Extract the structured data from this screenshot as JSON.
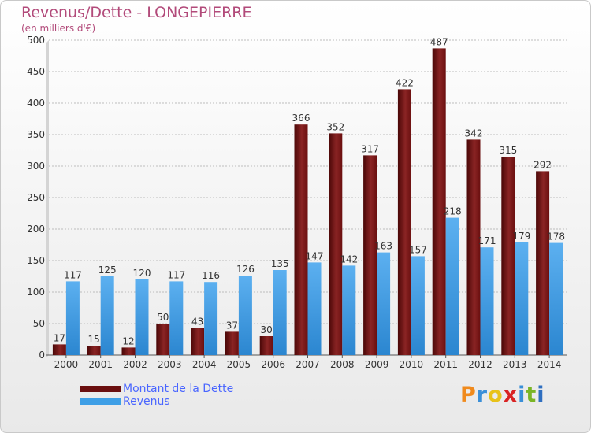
{
  "header": {
    "title": "Revenus/Dette - LONGEPIERRE",
    "subtitle": "(en milliers d'€)"
  },
  "chart_data": {
    "type": "bar",
    "categories": [
      "2000",
      "2001",
      "2002",
      "2003",
      "2004",
      "2005",
      "2006",
      "2007",
      "2008",
      "2009",
      "2010",
      "2011",
      "2012",
      "2013",
      "2014"
    ],
    "series": [
      {
        "name": "Montant de la Dette",
        "color": "#7a1010",
        "values": [
          17,
          15,
          12,
          50,
          43,
          37,
          30,
          366,
          352,
          317,
          422,
          487,
          342,
          315,
          292
        ]
      },
      {
        "name": "Revenus",
        "color": "#3f9fe6",
        "values": [
          117,
          125,
          120,
          117,
          116,
          126,
          135,
          147,
          142,
          163,
          157,
          218,
          171,
          179,
          178
        ]
      }
    ],
    "title": "Revenus/Dette - LONGEPIERRE",
    "ylabel": "(en milliers d'€)",
    "ylim": [
      0,
      500
    ],
    "yticks": [
      0,
      50,
      100,
      150,
      200,
      250,
      300,
      350,
      400,
      450,
      500
    ],
    "grid": true,
    "legend": "bottom-left"
  },
  "logo": {
    "text": "Proxiti",
    "letter_colors": [
      "#f08a1c",
      "#3a8fd8",
      "#e8c21a",
      "#d92323",
      "#3a8fd8",
      "#7ab526",
      "#2f6fc0"
    ]
  }
}
